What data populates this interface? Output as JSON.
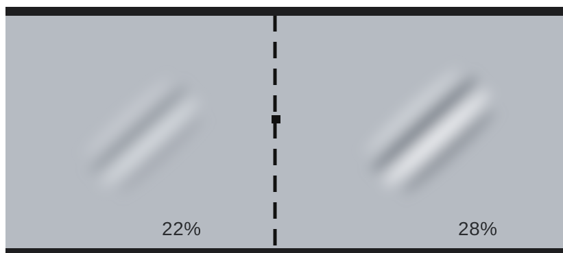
{
  "left_stimulus": {
    "contrast_label": "22%",
    "contrast_value": 22
  },
  "right_stimulus": {
    "contrast_label": "28%",
    "contrast_value": 28
  },
  "colors": {
    "background": "#b6bbc2",
    "frame_bar": "#1e1e20",
    "divider": "#111111",
    "label_text": "#2b2d30"
  }
}
